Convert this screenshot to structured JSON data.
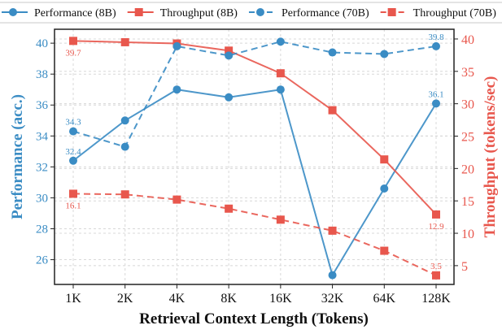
{
  "chart_data": {
    "type": "line",
    "xlabel": "Retrieval Context Length (Tokens)",
    "ylabel_left": "Performance (acc.)",
    "ylabel_right": "Throughput (tokens/sec)",
    "categories": [
      "1K",
      "2K",
      "4K",
      "8K",
      "16K",
      "32K",
      "64K",
      "128K"
    ],
    "y_left": {
      "range": [
        24.4,
        40.9
      ],
      "ticks": [
        26,
        28,
        30,
        32,
        34,
        36,
        38,
        40
      ]
    },
    "y_right": {
      "range": [
        2.1,
        41.5
      ],
      "ticks": [
        5,
        10,
        15,
        20,
        25,
        30,
        35,
        40
      ]
    },
    "grid": true,
    "legend_placement": "top",
    "series": [
      {
        "name": "Performance (8B)",
        "axis": "left",
        "style": "solid",
        "marker": "circle",
        "color": "#3a8cc4",
        "values": [
          32.4,
          35.0,
          37.0,
          36.5,
          37.0,
          25.0,
          30.6,
          36.1
        ],
        "labels": [
          {
            "index": 0,
            "text": "32.4"
          },
          {
            "index": 7,
            "text": "36.1"
          }
        ]
      },
      {
        "name": "Throughput (8B)",
        "axis": "right",
        "style": "solid",
        "marker": "square",
        "color": "#e8574d",
        "values": [
          39.7,
          39.5,
          39.3,
          38.2,
          34.7,
          29.0,
          21.4,
          12.9
        ],
        "labels": [
          {
            "index": 0,
            "text": "39.7"
          },
          {
            "index": 7,
            "text": "12.9"
          }
        ]
      },
      {
        "name": "Performance (70B)",
        "axis": "left",
        "style": "dashed",
        "marker": "circle",
        "color": "#3a8cc4",
        "values": [
          34.3,
          33.3,
          39.8,
          39.2,
          40.1,
          39.4,
          39.3,
          39.8
        ],
        "labels": [
          {
            "index": 0,
            "text": "34.3"
          },
          {
            "index": 7,
            "text": "39.8"
          }
        ]
      },
      {
        "name": "Throughput (70B)",
        "axis": "right",
        "style": "dashed",
        "marker": "square",
        "color": "#e8574d",
        "values": [
          16.1,
          16.0,
          15.2,
          13.8,
          12.1,
          10.4,
          7.3,
          3.5
        ],
        "labels": [
          {
            "index": 0,
            "text": "16.1"
          },
          {
            "index": 7,
            "text": "3.5"
          }
        ]
      }
    ]
  }
}
